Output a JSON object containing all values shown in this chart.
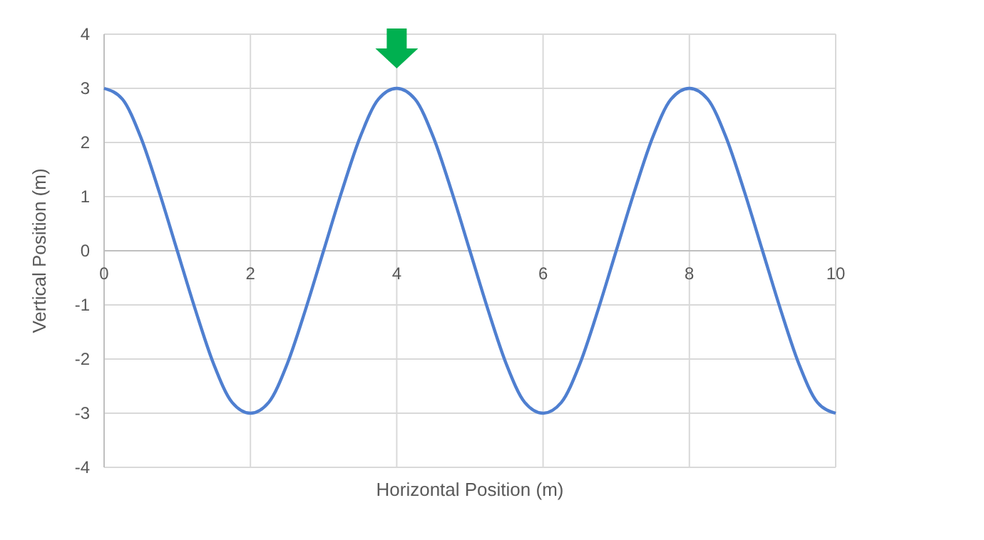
{
  "chart_data": {
    "type": "line",
    "xlabel": "Horizontal Position (m)",
    "ylabel": "Vertical Position (m)",
    "x": [
      0,
      0.25,
      0.5,
      0.75,
      1,
      1.25,
      1.5,
      1.75,
      2,
      2.25,
      2.5,
      2.75,
      3,
      3.25,
      3.5,
      3.75,
      4,
      4.25,
      4.5,
      4.75,
      5,
      5.25,
      5.5,
      5.75,
      6,
      6.25,
      6.5,
      6.75,
      7,
      7.25,
      7.5,
      7.75,
      8,
      8.25,
      8.5,
      8.75,
      9,
      9.25,
      9.5,
      9.75,
      10
    ],
    "series": [
      {
        "color": "#4f7fd0",
        "values": [
          3,
          2.8,
          2.1,
          1.1,
          0,
          -1.1,
          -2.1,
          -2.8,
          -3,
          -2.8,
          -2.1,
          -1.1,
          0,
          1.1,
          2.1,
          2.8,
          3,
          2.8,
          2.1,
          1.1,
          0,
          -1.1,
          -2.1,
          -2.8,
          -3,
          -2.8,
          -2.1,
          -1.1,
          0,
          1.1,
          2.1,
          2.8,
          3,
          2.8,
          2.1,
          1.1,
          0,
          -1.1,
          -2.1,
          -2.8,
          -3
        ]
      }
    ],
    "xlim": [
      0,
      10
    ],
    "xticks": [
      0,
      2,
      4,
      6,
      8,
      10
    ],
    "ylim": [
      -4,
      4
    ],
    "yticks": [
      -4,
      -3,
      -2,
      -1,
      0,
      1,
      2,
      3,
      4
    ],
    "grid": true,
    "marker": "none",
    "line_style": "solid"
  }
}
